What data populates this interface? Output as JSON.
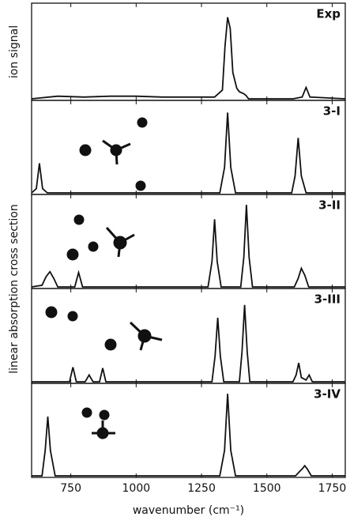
{
  "chart_data": [
    {
      "type": "line",
      "label": "Exp",
      "ylabel": "ion signal",
      "xlim": [
        600,
        1800
      ],
      "ylim": [
        0,
        1
      ],
      "x": [
        600,
        700,
        800,
        900,
        1000,
        1100,
        1200,
        1300,
        1330,
        1340,
        1350,
        1360,
        1370,
        1385,
        1395,
        1410,
        1420,
        1430,
        1600,
        1635,
        1650,
        1665,
        1800
      ],
      "values": [
        0,
        0.03,
        0.02,
        0.03,
        0.03,
        0.02,
        0.02,
        0.02,
        0.1,
        0.6,
        0.93,
        0.8,
        0.3,
        0.12,
        0.08,
        0.06,
        0.04,
        0,
        0,
        0.02,
        0.13,
        0.02,
        0
      ]
    },
    {
      "type": "line",
      "label": "3-I",
      "xlim": [
        600,
        1800
      ],
      "ylim": [
        0,
        1
      ],
      "x": [
        600,
        618,
        630,
        642,
        660,
        1320,
        1338,
        1350,
        1362,
        1380,
        1595,
        1608,
        1620,
        1632,
        1650,
        1800
      ],
      "values": [
        0,
        0.05,
        0.35,
        0.05,
        0,
        0,
        0.3,
        0.95,
        0.3,
        0,
        0,
        0.2,
        0.65,
        0.2,
        0,
        0
      ]
    },
    {
      "type": "line",
      "label": "3-II",
      "ylabel": "linear absorption cross section",
      "xlim": [
        600,
        1800
      ],
      "ylim": [
        0,
        1
      ],
      "x": [
        600,
        640,
        655,
        670,
        685,
        700,
        765,
        780,
        795,
        1275,
        1290,
        1300,
        1310,
        1325,
        1400,
        1412,
        1422,
        1432,
        1445,
        1605,
        1620,
        1632,
        1645,
        1660,
        1800
      ],
      "values": [
        0,
        0.02,
        0.12,
        0.18,
        0.1,
        0,
        0,
        0.17,
        0,
        0,
        0.3,
        0.8,
        0.3,
        0,
        0,
        0.35,
        0.97,
        0.35,
        0,
        0,
        0.1,
        0.22,
        0.14,
        0,
        0
      ]
    },
    {
      "type": "line",
      "label": "3-III",
      "xlim": [
        600,
        1800
      ],
      "ylim": [
        0,
        1
      ],
      "x": [
        600,
        745,
        758,
        771,
        805,
        820,
        835,
        860,
        872,
        884,
        1290,
        1302,
        1312,
        1322,
        1335,
        1395,
        1405,
        1415,
        1425,
        1435,
        1600,
        1612,
        1622,
        1632,
        1650,
        1662,
        1674,
        1800
      ],
      "values": [
        0,
        0,
        0.17,
        0,
        0,
        0.08,
        0,
        0,
        0.16,
        0,
        0,
        0.3,
        0.75,
        0.3,
        0,
        0,
        0.35,
        0.9,
        0.35,
        0,
        0,
        0.08,
        0.22,
        0.05,
        0.02,
        0.08,
        0,
        0
      ]
    },
    {
      "type": "line",
      "label": "3-IV",
      "xlim": [
        600,
        1800
      ],
      "ylim": [
        0,
        1
      ],
      "x": [
        600,
        640,
        652,
        662,
        672,
        690,
        1320,
        1338,
        1350,
        1362,
        1380,
        1610,
        1625,
        1635,
        1645,
        1655,
        1670,
        1800
      ],
      "values": [
        0,
        0,
        0.3,
        0.7,
        0.3,
        0,
        0,
        0.3,
        0.97,
        0.3,
        0,
        0,
        0.05,
        0.08,
        0.12,
        0.08,
        0,
        0
      ],
      "xticks": [
        750,
        1000,
        1250,
        1500,
        1750
      ],
      "xlabel": "wavenumber (cm⁻¹)"
    }
  ]
}
